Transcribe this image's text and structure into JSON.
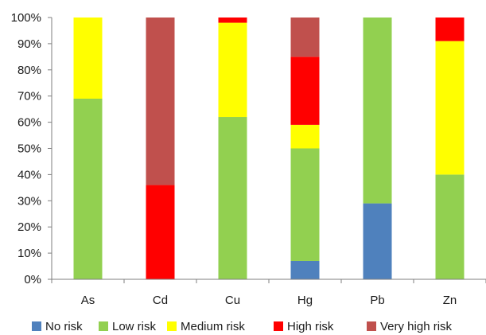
{
  "chart_data": {
    "type": "bar",
    "stacked": true,
    "normalized": true,
    "categories": [
      "As",
      "Cd",
      "Cu",
      "Hg",
      "Pb",
      "Zn"
    ],
    "series": [
      {
        "name": "No risk",
        "color": "#4f81bd",
        "values": [
          0,
          0,
          0,
          7,
          29,
          0
        ]
      },
      {
        "name": "Low risk",
        "color": "#92d050",
        "values": [
          69,
          0,
          62,
          43,
          71,
          40
        ]
      },
      {
        "name": "Medium risk",
        "color": "#ffff00",
        "values": [
          31,
          0,
          36,
          9,
          0,
          51
        ]
      },
      {
        "name": "High risk",
        "color": "#ff0000",
        "values": [
          0,
          36,
          2,
          26,
          0,
          9
        ]
      },
      {
        "name": "Very high risk",
        "color": "#c0504d",
        "values": [
          0,
          64,
          0,
          15,
          0,
          0
        ]
      }
    ],
    "ylim": [
      0,
      100
    ],
    "yticks": [
      "0%",
      "10%",
      "20%",
      "30%",
      "40%",
      "50%",
      "60%",
      "70%",
      "80%",
      "90%",
      "100%"
    ],
    "grid": false,
    "legend_position": "bottom"
  }
}
